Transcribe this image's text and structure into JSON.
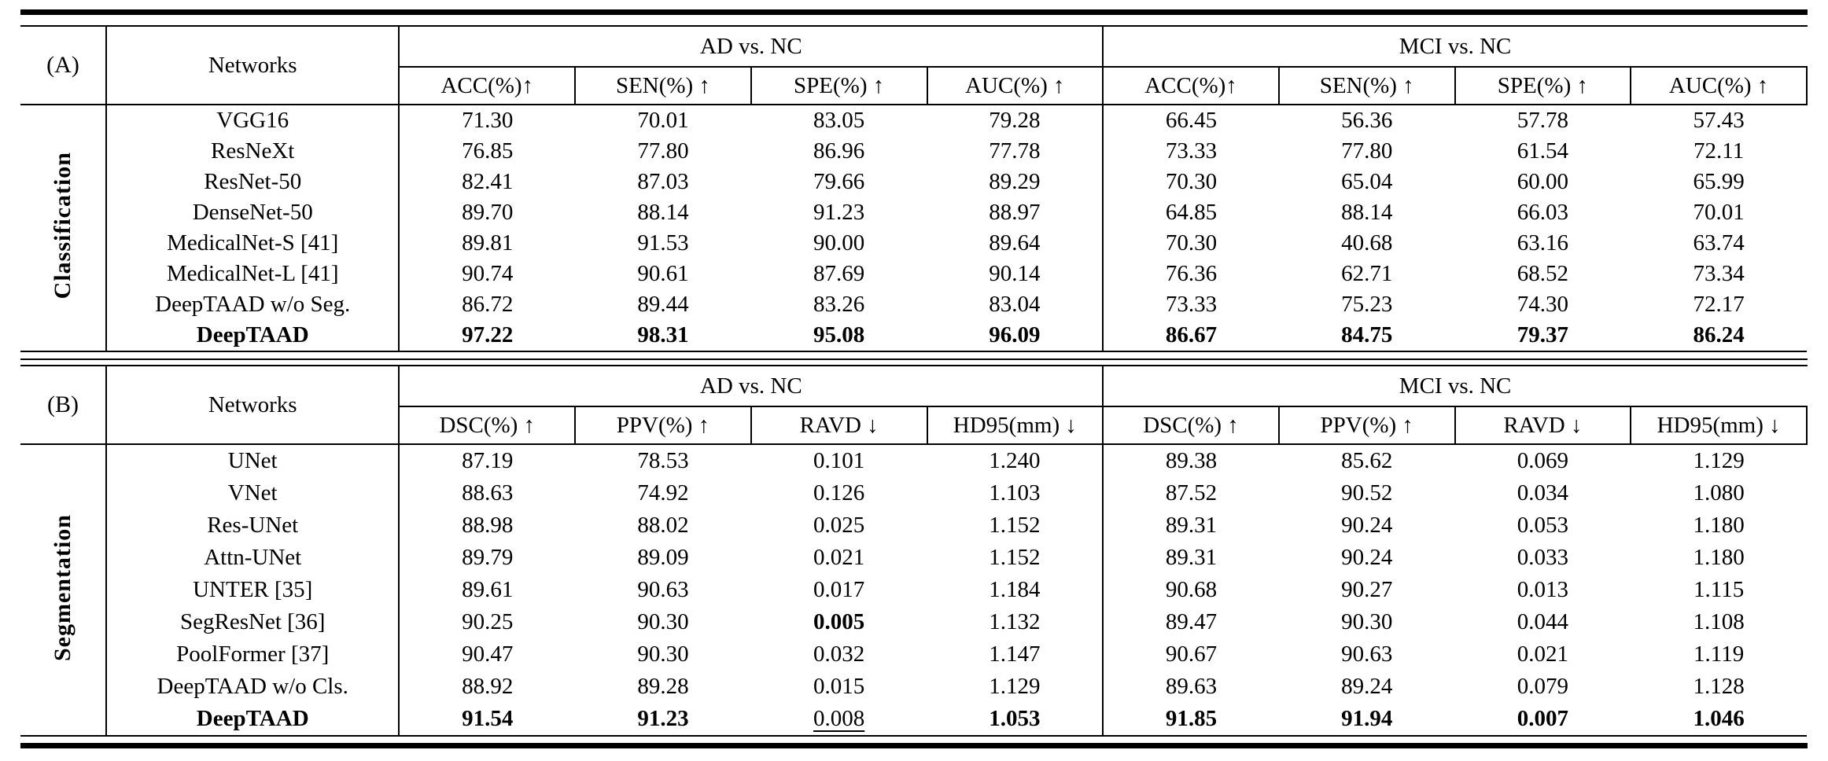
{
  "colors": {
    "rule": "#000000",
    "background": "#ffffff",
    "text": "#000000"
  },
  "tables": [
    {
      "panel_label": "(A)",
      "section_label": "Classification",
      "networks_header": "Networks",
      "groups": [
        {
          "label": "AD vs. NC",
          "metrics": [
            "ACC(%)↑",
            "SEN(%) ↑",
            "SPE(%) ↑",
            "AUC(%) ↑"
          ]
        },
        {
          "label": "MCI vs. NC",
          "metrics": [
            "ACC(%)↑",
            "SEN(%) ↑",
            "SPE(%) ↑",
            "AUC(%) ↑"
          ]
        }
      ],
      "rows": [
        {
          "network": "VGG16",
          "values": [
            "71.30",
            "70.01",
            "83.05",
            "79.28",
            "66.45",
            "56.36",
            "57.78",
            "57.43"
          ]
        },
        {
          "network": "ResNeXt",
          "values": [
            "76.85",
            "77.80",
            "86.96",
            "77.78",
            "73.33",
            "77.80",
            "61.54",
            "72.11"
          ]
        },
        {
          "network": "ResNet-50",
          "values": [
            "82.41",
            "87.03",
            "79.66",
            "89.29",
            "70.30",
            "65.04",
            "60.00",
            "65.99"
          ]
        },
        {
          "network": "DenseNet-50",
          "values": [
            "89.70",
            "88.14",
            "91.23",
            "88.97",
            "64.85",
            "88.14",
            "66.03",
            "70.01"
          ]
        },
        {
          "network": "MedicalNet-S [41]",
          "values": [
            "89.81",
            "91.53",
            "90.00",
            "89.64",
            "70.30",
            "40.68",
            "63.16",
            "63.74"
          ]
        },
        {
          "network": "MedicalNet-L [41]",
          "values": [
            "90.74",
            "90.61",
            "87.69",
            "90.14",
            "76.36",
            "62.71",
            "68.52",
            "73.34"
          ]
        },
        {
          "network": "DeepTAAD w/o Seg.",
          "values": [
            "86.72",
            "89.44",
            "83.26",
            "83.04",
            "73.33",
            "75.23",
            "74.30",
            "72.17"
          ]
        },
        {
          "network": "DeepTAAD",
          "network_style": "bold",
          "values": [
            "97.22",
            "98.31",
            "95.08",
            "96.09",
            "86.67",
            "84.75",
            "79.37",
            "86.24"
          ],
          "value_styles": [
            "bold",
            "bold",
            "bold",
            "bold",
            "bold",
            "bold",
            "bold",
            "bold"
          ]
        }
      ]
    },
    {
      "panel_label": "(B)",
      "section_label": "Segmentation",
      "networks_header": "Networks",
      "groups": [
        {
          "label": "AD vs. NC",
          "metrics": [
            "DSC(%) ↑",
            "PPV(%) ↑",
            "RAVD ↓",
            "HD95(mm) ↓"
          ]
        },
        {
          "label": "MCI vs. NC",
          "metrics": [
            "DSC(%) ↑",
            "PPV(%) ↑",
            "RAVD ↓",
            "HD95(mm) ↓"
          ]
        }
      ],
      "rows": [
        {
          "network": "UNet",
          "values": [
            "87.19",
            "78.53",
            "0.101",
            "1.240",
            "89.38",
            "85.62",
            "0.069",
            "1.129"
          ]
        },
        {
          "network": "VNet",
          "values": [
            "88.63",
            "74.92",
            "0.126",
            "1.103",
            "87.52",
            "90.52",
            "0.034",
            "1.080"
          ]
        },
        {
          "network": "Res-UNet",
          "values": [
            "88.98",
            "88.02",
            "0.025",
            "1.152",
            "89.31",
            "90.24",
            "0.053",
            "1.180"
          ]
        },
        {
          "network": "Attn-UNet",
          "values": [
            "89.79",
            "89.09",
            "0.021",
            "1.152",
            "89.31",
            "90.24",
            "0.033",
            "1.180"
          ]
        },
        {
          "network": "UNTER [35]",
          "values": [
            "89.61",
            "90.63",
            "0.017",
            "1.184",
            "90.68",
            "90.27",
            "0.013",
            "1.115"
          ]
        },
        {
          "network": "SegResNet [36]",
          "values": [
            "90.25",
            "90.30",
            "0.005",
            "1.132",
            "89.47",
            "90.30",
            "0.044",
            "1.108"
          ],
          "value_styles": [
            "",
            "",
            "bold",
            "",
            "",
            "",
            "",
            ""
          ]
        },
        {
          "network": "PoolFormer [37]",
          "values": [
            "90.47",
            "90.30",
            "0.032",
            "1.147",
            "90.67",
            "90.63",
            "0.021",
            "1.119"
          ]
        },
        {
          "network": "DeepTAAD w/o Cls.",
          "values": [
            "88.92",
            "89.28",
            "0.015",
            "1.129",
            "89.63",
            "89.24",
            "0.079",
            "1.128"
          ]
        },
        {
          "network": "DeepTAAD",
          "network_style": "bold",
          "values": [
            "91.54",
            "91.23",
            "0.008",
            "1.053",
            "91.85",
            "91.94",
            "0.007",
            "1.046"
          ],
          "value_styles": [
            "bold",
            "bold",
            "underline",
            "bold",
            "bold",
            "bold",
            "bold",
            "bold"
          ]
        }
      ]
    }
  ]
}
